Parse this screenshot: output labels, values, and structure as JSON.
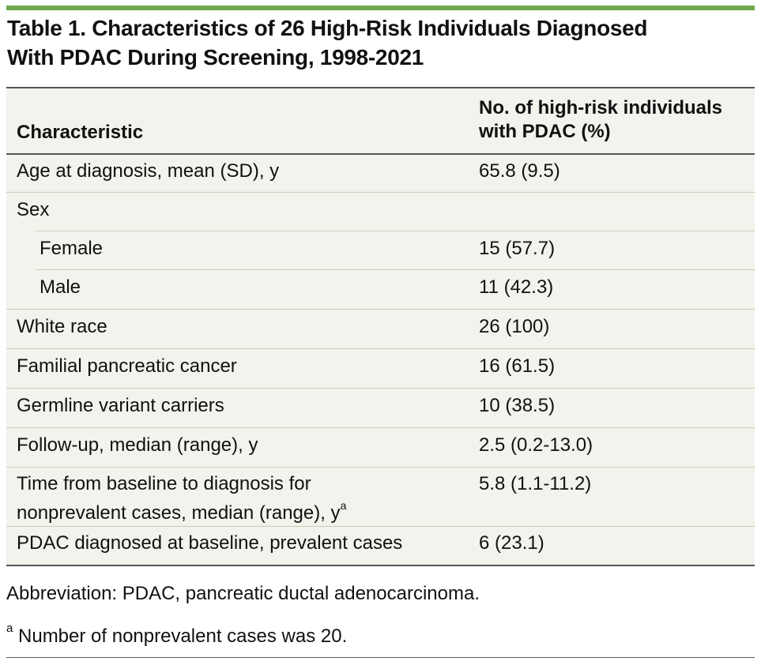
{
  "title": {
    "line1": "Table 1. Characteristics of 26 High-Risk Individuals Diagnosed",
    "line2": "With PDAC During Screening, 1998-2021"
  },
  "header": {
    "col1": "Characteristic",
    "col2_line1": "No. of high-risk individuals",
    "col2_line2": "with PDAC (%)"
  },
  "rows": [
    {
      "label": "Age at diagnosis, mean (SD), y",
      "value": "65.8 (9.5)"
    },
    {
      "label": "Sex",
      "value": ""
    },
    {
      "label": "Female",
      "value": "15 (57.7)"
    },
    {
      "label": "Male",
      "value": "11 (42.3)"
    },
    {
      "label": "White race",
      "value": "26 (100)"
    },
    {
      "label": "Familial pancreatic cancer",
      "value": "16 (61.5)"
    },
    {
      "label": "Germline variant carriers",
      "value": "10 (38.5)"
    },
    {
      "label": "Follow-up, median (range), y",
      "value": "2.5 (0.2-13.0)"
    },
    {
      "label_line1": "Time from baseline to diagnosis for",
      "label_line2": "nonprevalent cases, median (range), y",
      "label_sup": "a",
      "value": "5.8 (1.1-11.2)"
    },
    {
      "label": "PDAC diagnosed at baseline, prevalent cases",
      "value": "6 (23.1)"
    }
  ],
  "footnotes": {
    "abbreviation": "Abbreviation: PDAC, pancreatic ductal adenocarcinoma.",
    "note_marker": "a",
    "note_text": " Number of nonprevalent cases was 20."
  },
  "colors": {
    "accent_bar": "#6ea84e",
    "table_bg": "#f1f3ec"
  }
}
